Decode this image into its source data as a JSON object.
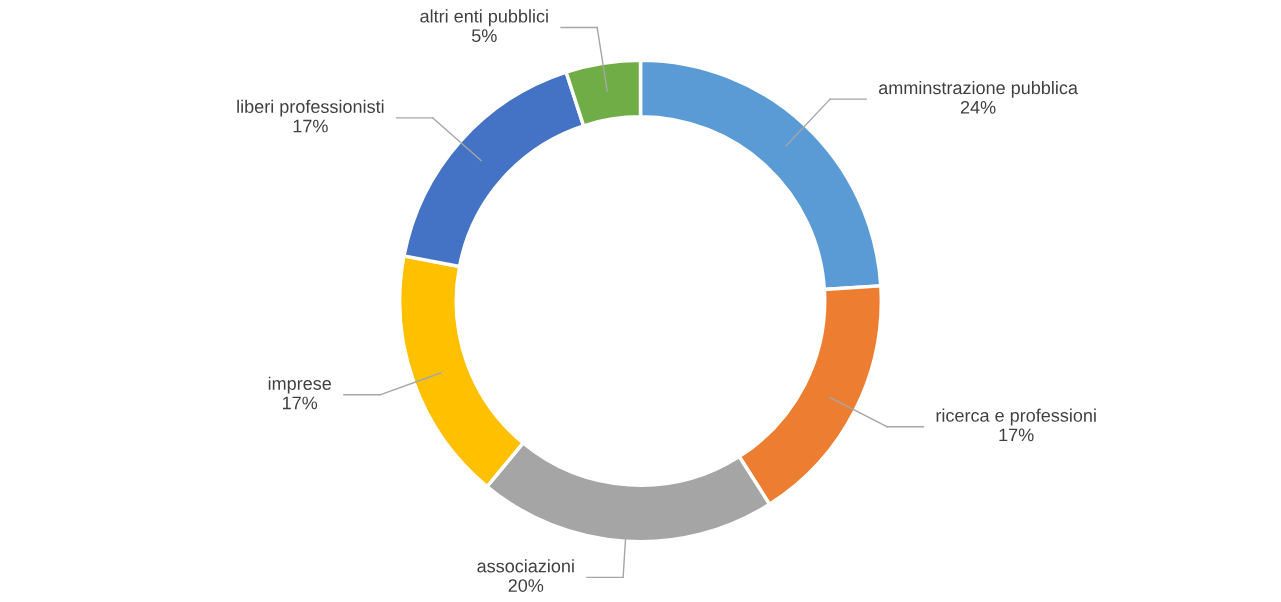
{
  "chart_data": {
    "type": "donut",
    "categories": [
      "amminstrazione pubblica",
      "ricerca e professioni",
      "associazioni",
      "imprese",
      "liberi professionisti",
      "altri enti pubblici"
    ],
    "values": [
      24,
      17,
      20,
      17,
      17,
      5
    ],
    "value_labels": [
      "24%",
      "17%",
      "20%",
      "17%",
      "17%",
      "5%"
    ],
    "colors": [
      "#5b9bd5",
      "#ed7d31",
      "#a5a5a5",
      "#ffc000",
      "#4472c4",
      "#70ad47"
    ]
  }
}
